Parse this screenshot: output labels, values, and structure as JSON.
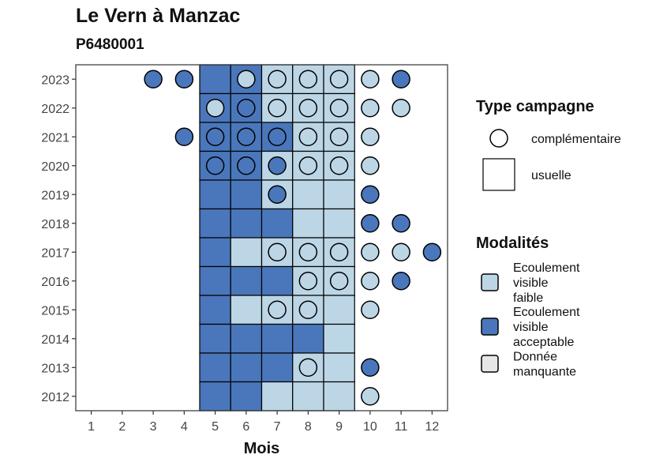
{
  "chart_data": {
    "type": "heatmap",
    "title": "Le Vern à Manzac",
    "subtitle": "P6480001",
    "xlabel": "Mois",
    "ylabel": "",
    "x_ticks": [
      1,
      2,
      3,
      4,
      5,
      6,
      7,
      8,
      9,
      10,
      11,
      12
    ],
    "years": [
      2023,
      2022,
      2021,
      2020,
      2019,
      2018,
      2017,
      2016,
      2015,
      2014,
      2013,
      2012
    ],
    "colors": {
      "faible": "#bcd6e6",
      "acceptable": "#4a77bb",
      "manquante": "#e6e6e6"
    },
    "legend_type": {
      "title": "Type campagne",
      "items": [
        {
          "shape": "circle",
          "label": "complémentaire"
        },
        {
          "shape": "square",
          "label": "usuelle"
        }
      ]
    },
    "legend_modalites": {
      "title": "Modalités",
      "items": [
        {
          "key": "faible",
          "lines": [
            "Ecoulement",
            "visible",
            "faible"
          ]
        },
        {
          "key": "acceptable",
          "lines": [
            "Ecoulement",
            "visible",
            "acceptable"
          ]
        },
        {
          "key": "manquante",
          "lines": [
            "Donnée",
            "manquante"
          ]
        }
      ]
    },
    "usuelle": [
      {
        "year": 2023,
        "values": {
          "5": "acceptable",
          "6": "acceptable",
          "7": "faible",
          "8": "faible",
          "9": "faible"
        }
      },
      {
        "year": 2022,
        "values": {
          "5": "acceptable",
          "6": "acceptable",
          "7": "faible",
          "8": "faible",
          "9": "faible"
        }
      },
      {
        "year": 2021,
        "values": {
          "5": "acceptable",
          "6": "acceptable",
          "7": "acceptable",
          "8": "faible",
          "9": "faible"
        }
      },
      {
        "year": 2020,
        "values": {
          "5": "acceptable",
          "6": "acceptable",
          "7": "faible",
          "8": "faible",
          "9": "faible"
        }
      },
      {
        "year": 2019,
        "values": {
          "5": "acceptable",
          "6": "acceptable",
          "7": "faible",
          "8": "faible",
          "9": "faible"
        }
      },
      {
        "year": 2018,
        "values": {
          "5": "acceptable",
          "6": "acceptable",
          "7": "acceptable",
          "8": "faible",
          "9": "faible"
        }
      },
      {
        "year": 2017,
        "values": {
          "5": "acceptable",
          "6": "faible",
          "7": "faible",
          "8": "faible",
          "9": "faible"
        }
      },
      {
        "year": 2016,
        "values": {
          "5": "acceptable",
          "6": "acceptable",
          "7": "acceptable",
          "8": "faible",
          "9": "faible"
        }
      },
      {
        "year": 2015,
        "values": {
          "5": "acceptable",
          "6": "faible",
          "7": "faible",
          "8": "faible",
          "9": "faible"
        }
      },
      {
        "year": 2014,
        "values": {
          "5": "acceptable",
          "6": "acceptable",
          "7": "acceptable",
          "8": "acceptable",
          "9": "faible"
        }
      },
      {
        "year": 2013,
        "values": {
          "5": "acceptable",
          "6": "acceptable",
          "7": "acceptable",
          "8": "faible",
          "9": "faible"
        }
      },
      {
        "year": 2012,
        "values": {
          "5": "acceptable",
          "6": "acceptable",
          "7": "faible",
          "8": "faible",
          "9": "faible"
        }
      }
    ],
    "complementaire": [
      {
        "year": 2023,
        "values": {
          "3": "acceptable",
          "4": "acceptable",
          "6": "faible",
          "7": "faible",
          "8": "faible",
          "9": "faible",
          "10": "faible",
          "11": "acceptable"
        }
      },
      {
        "year": 2022,
        "values": {
          "5": "faible",
          "6": "acceptable",
          "7": "faible",
          "8": "faible",
          "9": "faible",
          "10": "faible",
          "11": "faible"
        }
      },
      {
        "year": 2021,
        "values": {
          "4": "acceptable",
          "5": "acceptable",
          "6": "acceptable",
          "7": "acceptable",
          "8": "faible",
          "9": "faible",
          "10": "faible"
        }
      },
      {
        "year": 2020,
        "values": {
          "5": "acceptable",
          "6": "acceptable",
          "7": "acceptable",
          "8": "faible",
          "9": "faible",
          "10": "faible"
        }
      },
      {
        "year": 2019,
        "values": {
          "7": "acceptable",
          "10": "acceptable"
        }
      },
      {
        "year": 2018,
        "values": {
          "10": "acceptable",
          "11": "acceptable"
        }
      },
      {
        "year": 2017,
        "values": {
          "7": "faible",
          "8": "faible",
          "9": "faible",
          "10": "faible",
          "11": "faible",
          "12": "acceptable"
        }
      },
      {
        "year": 2016,
        "values": {
          "8": "faible",
          "9": "faible",
          "10": "faible",
          "11": "acceptable"
        }
      },
      {
        "year": 2015,
        "values": {
          "7": "faible",
          "8": "faible",
          "10": "faible"
        }
      },
      {
        "year": 2013,
        "values": {
          "8": "faible",
          "10": "acceptable"
        }
      },
      {
        "year": 2012,
        "values": {
          "10": "faible"
        }
      }
    ]
  }
}
